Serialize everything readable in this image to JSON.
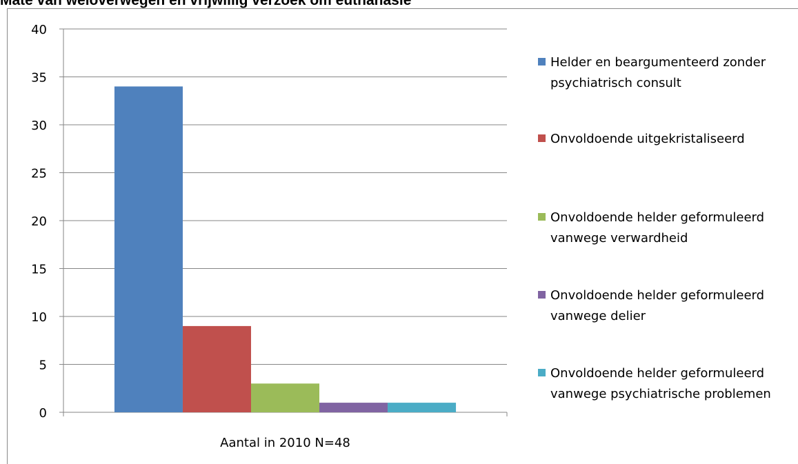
{
  "chart_data": {
    "type": "bar",
    "title": "Mate van weloverwegen en vrijwillig verzoek om euthanasie",
    "categories": [
      "Aantal in 2010 N=48"
    ],
    "series": [
      {
        "name": "Helder en beargumenteerd zonder psychiatrisch consult",
        "color": "#4f81bd",
        "values": [
          34
        ]
      },
      {
        "name": "Onvoldoende uitgekristaliseerd",
        "color": "#c0504d",
        "values": [
          9
        ]
      },
      {
        "name": "Onvoldoende helder geformuleerd vanwege verwardheid",
        "color": "#9bbb59",
        "values": [
          3
        ]
      },
      {
        "name": "Onvoldoende helder geformuleerd vanwege delier",
        "color": "#8064a2",
        "values": [
          1
        ]
      },
      {
        "name": "Onvoldoende helder geformuleerd vanwege psychiatrische problemen",
        "color": "#4bacc6",
        "values": [
          1
        ]
      }
    ],
    "ylim": [
      0,
      40
    ],
    "yticks": [
      0,
      5,
      10,
      15,
      20,
      25,
      30,
      35,
      40
    ],
    "grid": true,
    "legend": "right"
  }
}
